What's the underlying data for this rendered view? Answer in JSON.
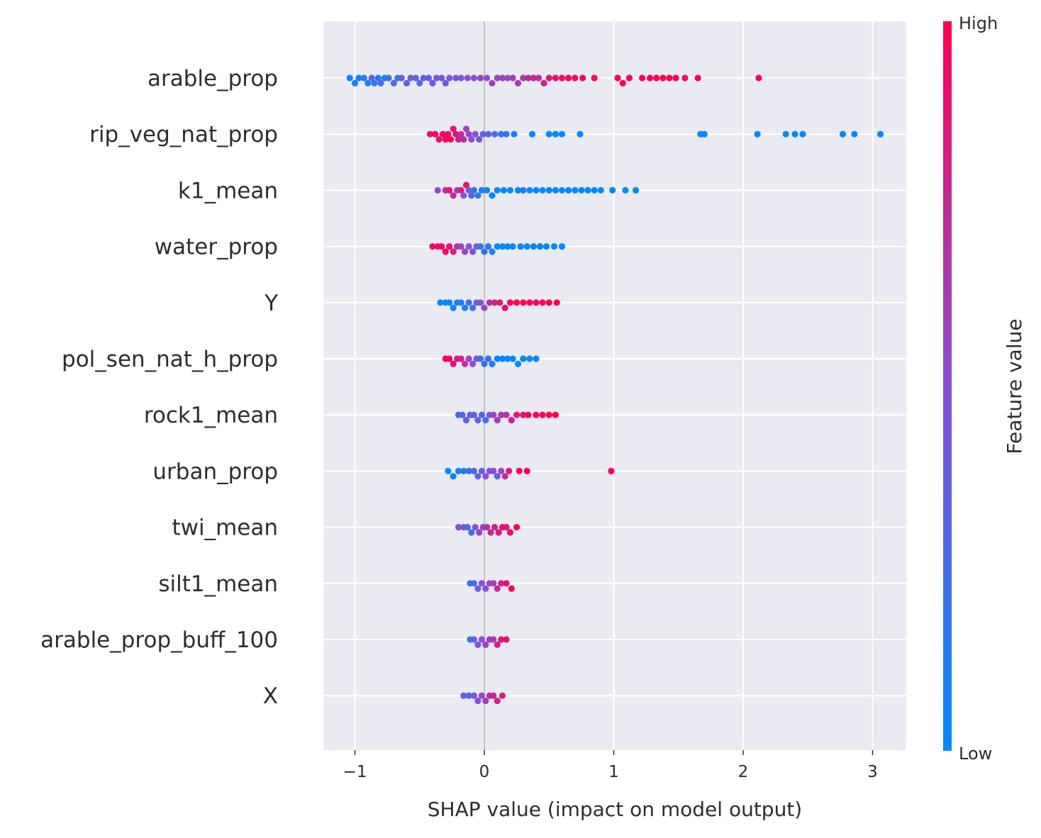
{
  "chart_data": {
    "type": "scatter",
    "subtype": "shap-beeswarm",
    "xlabel": "SHAP value (impact on model output)",
    "xlim": [
      -1.25,
      3.25
    ],
    "xticks": [
      -1,
      0,
      1,
      2,
      3
    ],
    "xtick_labels": [
      "−1",
      "0",
      "1",
      "2",
      "3"
    ],
    "grid": true,
    "zero_line": 0,
    "features": [
      "arable_prop",
      "rip_veg_nat_prop",
      "k1_mean",
      "water_prop",
      "Y",
      "pol_sen_nat_h_prop",
      "rock1_mean",
      "urban_prop",
      "twi_mean",
      "silt1_mean",
      "arable_prop_buff_100",
      "X"
    ],
    "colorbar": {
      "title": "Feature value",
      "high_label": "High",
      "low_label": "Low",
      "low_color": "#008afb",
      "mid_color": "#8a4fd6",
      "high_color": "#ff0052"
    },
    "series": [
      {
        "feature": "arable_prop",
        "points": [
          [
            -1.04,
            0.05
          ],
          [
            -1.0,
            0.1
          ],
          [
            -0.97,
            0.05
          ],
          [
            -0.93,
            0.15
          ],
          [
            -0.9,
            0.1
          ],
          [
            -0.87,
            0.3
          ],
          [
            -0.85,
            0.2
          ],
          [
            -0.82,
            0.15
          ],
          [
            -0.8,
            0.25
          ],
          [
            -0.77,
            0.1
          ],
          [
            -0.74,
            0.2
          ],
          [
            -0.7,
            0.3
          ],
          [
            -0.67,
            0.25
          ],
          [
            -0.64,
            0.35
          ],
          [
            -0.6,
            0.3
          ],
          [
            -0.57,
            0.4
          ],
          [
            -0.53,
            0.35
          ],
          [
            -0.5,
            0.3
          ],
          [
            -0.47,
            0.4
          ],
          [
            -0.43,
            0.35
          ],
          [
            -0.4,
            0.38
          ],
          [
            -0.37,
            0.4
          ],
          [
            -0.33,
            0.45
          ],
          [
            -0.3,
            0.4
          ],
          [
            -0.27,
            0.45
          ],
          [
            -0.22,
            0.4
          ],
          [
            -0.18,
            0.45
          ],
          [
            -0.13,
            0.5
          ],
          [
            -0.08,
            0.5
          ],
          [
            -0.03,
            0.55
          ],
          [
            0.02,
            0.5
          ],
          [
            0.06,
            0.6
          ],
          [
            0.1,
            0.55
          ],
          [
            0.14,
            0.6
          ],
          [
            0.18,
            0.55
          ],
          [
            0.22,
            0.65
          ],
          [
            0.26,
            0.6
          ],
          [
            0.3,
            0.65
          ],
          [
            0.34,
            0.7
          ],
          [
            0.38,
            0.75
          ],
          [
            0.42,
            0.7
          ],
          [
            0.46,
            0.8
          ],
          [
            0.5,
            0.85
          ],
          [
            0.55,
            0.9
          ],
          [
            0.6,
            0.9
          ],
          [
            0.65,
            0.95
          ],
          [
            0.7,
            0.95
          ],
          [
            0.76,
            0.95
          ],
          [
            0.85,
            1.0
          ],
          [
            1.03,
            1.0
          ],
          [
            1.07,
            1.0
          ],
          [
            1.12,
            1.0
          ],
          [
            1.22,
            0.95
          ],
          [
            1.28,
            1.0
          ],
          [
            1.33,
            1.0
          ],
          [
            1.38,
            1.0
          ],
          [
            1.43,
            1.0
          ],
          [
            1.48,
            1.0
          ],
          [
            1.55,
            0.95
          ],
          [
            1.65,
            1.0
          ],
          [
            2.12,
            1.0
          ]
        ]
      },
      {
        "feature": "rip_veg_nat_prop",
        "points": [
          [
            -0.42,
            0.9
          ],
          [
            -0.38,
            0.95
          ],
          [
            -0.35,
            0.9
          ],
          [
            -0.32,
            1.0
          ],
          [
            -0.3,
            0.95
          ],
          [
            -0.28,
            0.9
          ],
          [
            -0.26,
            1.0
          ],
          [
            -0.24,
            0.85
          ],
          [
            -0.22,
            0.9
          ],
          [
            -0.2,
            0.8
          ],
          [
            -0.18,
            0.75
          ],
          [
            -0.16,
            0.7
          ],
          [
            -0.14,
            0.6
          ],
          [
            -0.12,
            0.55
          ],
          [
            -0.1,
            0.5
          ],
          [
            -0.07,
            0.45
          ],
          [
            -0.04,
            0.4
          ],
          [
            -0.01,
            0.35
          ],
          [
            0.03,
            0.3
          ],
          [
            0.08,
            0.25
          ],
          [
            0.13,
            0.2
          ],
          [
            0.17,
            0.15
          ],
          [
            0.23,
            0.1
          ],
          [
            0.37,
            0.05
          ],
          [
            0.5,
            0.0
          ],
          [
            0.55,
            0.0
          ],
          [
            0.6,
            0.0
          ],
          [
            0.74,
            0.0
          ],
          [
            1.67,
            0.0
          ],
          [
            1.7,
            0.0
          ],
          [
            2.11,
            0.0
          ],
          [
            2.33,
            0.0
          ],
          [
            2.4,
            0.0
          ],
          [
            2.46,
            0.0
          ],
          [
            2.77,
            0.0
          ],
          [
            2.86,
            0.0
          ],
          [
            3.06,
            0.0
          ]
        ]
      },
      {
        "feature": "k1_mean",
        "points": [
          [
            -0.36,
            0.55
          ],
          [
            -0.3,
            0.75
          ],
          [
            -0.27,
            0.85
          ],
          [
            -0.24,
            0.7
          ],
          [
            -0.21,
            0.6
          ],
          [
            -0.18,
            0.8
          ],
          [
            -0.16,
            0.5
          ],
          [
            -0.14,
            0.9
          ],
          [
            -0.12,
            0.45
          ],
          [
            -0.1,
            0.3
          ],
          [
            -0.08,
            0.2
          ],
          [
            -0.05,
            0.15
          ],
          [
            -0.02,
            0.1
          ],
          [
            0.02,
            0.05
          ],
          [
            0.06,
            0.0
          ],
          [
            0.1,
            0.05
          ],
          [
            0.15,
            0.0
          ],
          [
            0.2,
            0.0
          ],
          [
            0.26,
            0.0
          ],
          [
            0.3,
            0.05
          ],
          [
            0.35,
            0.0
          ],
          [
            0.4,
            0.0
          ],
          [
            0.45,
            0.0
          ],
          [
            0.5,
            0.05
          ],
          [
            0.55,
            0.0
          ],
          [
            0.6,
            0.0
          ],
          [
            0.65,
            0.0
          ],
          [
            0.7,
            0.0
          ],
          [
            0.75,
            0.0
          ],
          [
            0.8,
            0.0
          ],
          [
            0.85,
            0.0
          ],
          [
            0.9,
            0.0
          ],
          [
            0.99,
            0.0
          ],
          [
            1.09,
            0.0
          ],
          [
            1.17,
            0.0
          ]
        ]
      },
      {
        "feature": "water_prop",
        "points": [
          [
            -0.4,
            0.95
          ],
          [
            -0.36,
            0.9
          ],
          [
            -0.33,
            1.0
          ],
          [
            -0.3,
            0.95
          ],
          [
            -0.27,
            0.9
          ],
          [
            -0.24,
            0.8
          ],
          [
            -0.21,
            0.7
          ],
          [
            -0.18,
            0.6
          ],
          [
            -0.15,
            0.55
          ],
          [
            -0.12,
            0.5
          ],
          [
            -0.09,
            0.45
          ],
          [
            -0.06,
            0.35
          ],
          [
            -0.03,
            0.25
          ],
          [
            0.0,
            0.2
          ],
          [
            0.03,
            0.15
          ],
          [
            0.06,
            0.1
          ],
          [
            0.1,
            0.05
          ],
          [
            0.14,
            0.0
          ],
          [
            0.18,
            0.0
          ],
          [
            0.22,
            0.0
          ],
          [
            0.28,
            0.0
          ],
          [
            0.33,
            0.0
          ],
          [
            0.38,
            0.0
          ],
          [
            0.43,
            0.0
          ],
          [
            0.48,
            0.0
          ],
          [
            0.54,
            0.0
          ],
          [
            0.6,
            0.0
          ]
        ]
      },
      {
        "feature": "Y",
        "points": [
          [
            -0.34,
            0.0
          ],
          [
            -0.3,
            0.05
          ],
          [
            -0.27,
            0.0
          ],
          [
            -0.24,
            0.1
          ],
          [
            -0.21,
            0.05
          ],
          [
            -0.18,
            0.15
          ],
          [
            -0.15,
            0.1
          ],
          [
            -0.12,
            0.2
          ],
          [
            -0.09,
            0.25
          ],
          [
            -0.06,
            0.35
          ],
          [
            -0.03,
            0.45
          ],
          [
            0.0,
            0.55
          ],
          [
            0.04,
            0.7
          ],
          [
            0.08,
            0.8
          ],
          [
            0.12,
            0.85
          ],
          [
            0.16,
            0.9
          ],
          [
            0.2,
            0.95
          ],
          [
            0.25,
            1.0
          ],
          [
            0.3,
            1.0
          ],
          [
            0.35,
            1.0
          ],
          [
            0.4,
            0.95
          ],
          [
            0.45,
            1.0
          ],
          [
            0.5,
            1.0
          ],
          [
            0.56,
            1.0
          ]
        ]
      },
      {
        "feature": "pol_sen_nat_h_prop",
        "points": [
          [
            -0.3,
            1.0
          ],
          [
            -0.27,
            0.95
          ],
          [
            -0.24,
            0.9
          ],
          [
            -0.21,
            0.85
          ],
          [
            -0.18,
            0.8
          ],
          [
            -0.15,
            0.7
          ],
          [
            -0.12,
            0.6
          ],
          [
            -0.09,
            0.5
          ],
          [
            -0.06,
            0.35
          ],
          [
            -0.03,
            0.25
          ],
          [
            0.0,
            0.2
          ],
          [
            0.03,
            0.15
          ],
          [
            0.06,
            0.1
          ],
          [
            0.1,
            0.05
          ],
          [
            0.14,
            0.0
          ],
          [
            0.18,
            0.0
          ],
          [
            0.22,
            0.0
          ],
          [
            0.26,
            0.0
          ],
          [
            0.3,
            0.0
          ],
          [
            0.35,
            0.0
          ],
          [
            0.4,
            0.0
          ]
        ]
      },
      {
        "feature": "rock1_mean",
        "points": [
          [
            -0.2,
            0.2
          ],
          [
            -0.17,
            0.3
          ],
          [
            -0.14,
            0.35
          ],
          [
            -0.11,
            0.3
          ],
          [
            -0.08,
            0.4
          ],
          [
            -0.05,
            0.35
          ],
          [
            -0.02,
            0.3
          ],
          [
            0.01,
            0.25
          ],
          [
            0.04,
            0.5
          ],
          [
            0.07,
            0.55
          ],
          [
            0.1,
            0.6
          ],
          [
            0.13,
            0.65
          ],
          [
            0.17,
            0.7
          ],
          [
            0.21,
            0.8
          ],
          [
            0.25,
            0.85
          ],
          [
            0.3,
            0.9
          ],
          [
            0.34,
            0.95
          ],
          [
            0.4,
            0.95
          ],
          [
            0.45,
            1.0
          ],
          [
            0.5,
            1.0
          ],
          [
            0.55,
            1.0
          ]
        ]
      },
      {
        "feature": "urban_prop",
        "points": [
          [
            -0.28,
            0.0
          ],
          [
            -0.24,
            0.05
          ],
          [
            -0.2,
            0.1
          ],
          [
            -0.16,
            0.15
          ],
          [
            -0.12,
            0.2
          ],
          [
            -0.08,
            0.3
          ],
          [
            -0.05,
            0.35
          ],
          [
            -0.02,
            0.4
          ],
          [
            0.01,
            0.5
          ],
          [
            0.04,
            0.45
          ],
          [
            0.07,
            0.5
          ],
          [
            0.1,
            0.4
          ],
          [
            0.13,
            0.55
          ],
          [
            0.16,
            0.7
          ],
          [
            0.19,
            0.85
          ],
          [
            0.27,
            1.0
          ],
          [
            0.33,
            1.0
          ],
          [
            0.98,
            1.0
          ]
        ]
      },
      {
        "feature": "twi_mean",
        "points": [
          [
            -0.2,
            0.5
          ],
          [
            -0.16,
            0.45
          ],
          [
            -0.13,
            0.3
          ],
          [
            -0.1,
            0.2
          ],
          [
            -0.07,
            0.5
          ],
          [
            -0.04,
            0.55
          ],
          [
            -0.01,
            0.6
          ],
          [
            0.02,
            0.7
          ],
          [
            0.05,
            0.75
          ],
          [
            0.08,
            0.8
          ],
          [
            0.11,
            0.85
          ],
          [
            0.14,
            0.9
          ],
          [
            0.17,
            0.85
          ],
          [
            0.2,
            0.9
          ],
          [
            0.25,
            0.95
          ]
        ]
      },
      {
        "feature": "silt1_mean",
        "points": [
          [
            -0.11,
            0.2
          ],
          [
            -0.08,
            0.25
          ],
          [
            -0.05,
            0.35
          ],
          [
            -0.02,
            0.45
          ],
          [
            0.01,
            0.5
          ],
          [
            0.04,
            0.55
          ],
          [
            0.07,
            0.6
          ],
          [
            0.1,
            0.75
          ],
          [
            0.13,
            0.8
          ],
          [
            0.17,
            0.9
          ],
          [
            0.21,
            0.95
          ]
        ]
      },
      {
        "feature": "arable_prop_buff_100",
        "points": [
          [
            -0.11,
            0.2
          ],
          [
            -0.08,
            0.4
          ],
          [
            -0.05,
            0.45
          ],
          [
            -0.02,
            0.5
          ],
          [
            0.01,
            0.55
          ],
          [
            0.04,
            0.6
          ],
          [
            0.07,
            0.65
          ],
          [
            0.1,
            0.8
          ],
          [
            0.13,
            0.85
          ],
          [
            0.17,
            0.9
          ]
        ]
      },
      {
        "feature": "X",
        "points": [
          [
            -0.16,
            0.4
          ],
          [
            -0.12,
            0.3
          ],
          [
            -0.08,
            0.45
          ],
          [
            -0.05,
            0.5
          ],
          [
            -0.02,
            0.55
          ],
          [
            0.01,
            0.6
          ],
          [
            0.04,
            0.7
          ],
          [
            0.07,
            0.75
          ],
          [
            0.1,
            0.8
          ],
          [
            0.14,
            0.85
          ]
        ]
      }
    ]
  }
}
